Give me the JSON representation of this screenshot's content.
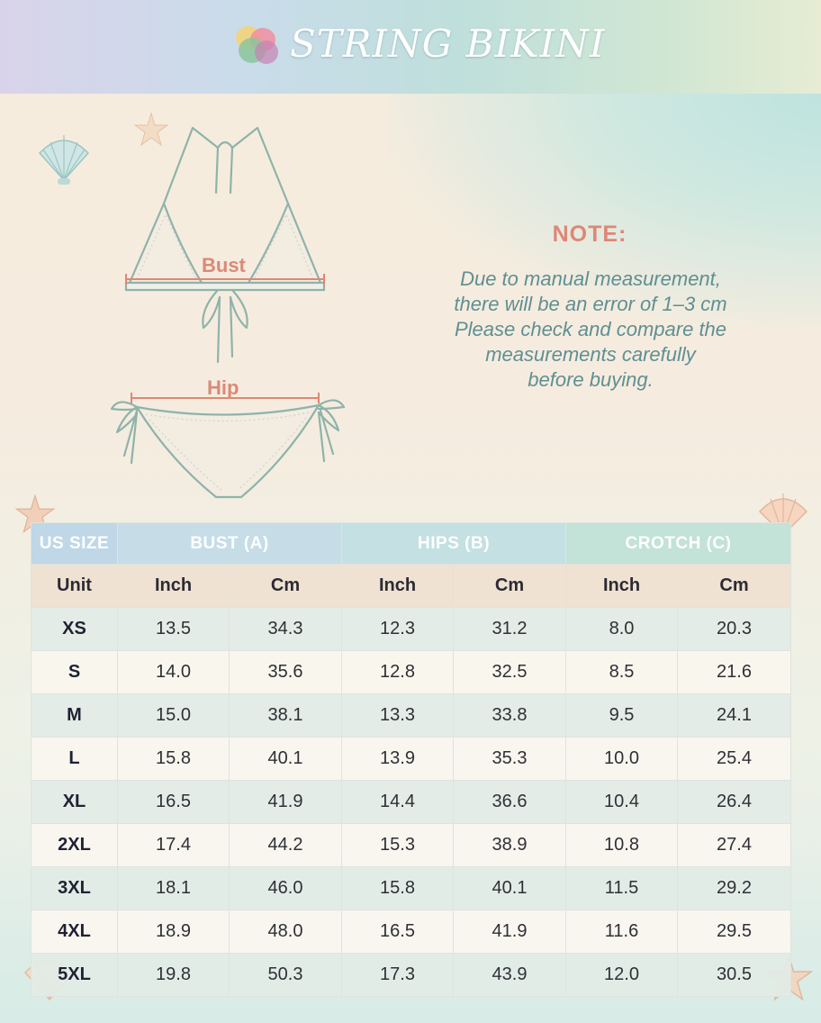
{
  "header": {
    "title": "STRING BIKINI"
  },
  "diagram": {
    "bust_label": "Bust",
    "hip_label": "Hip"
  },
  "note": {
    "title": "NOTE:",
    "lines": [
      "Due to manual measurement,",
      "there will be an error of  1–3 cm",
      "Please check and compare the",
      "measurements carefully",
      "before buying."
    ]
  },
  "colors": {
    "accent": "#de8776",
    "note_text": "#5f8f92",
    "header_cell_text": "#ffffff",
    "unit_row_bg": "#efe2d2"
  },
  "table": {
    "headers": [
      "US SIZE",
      "BUST (A)",
      "HIPS (B)",
      "CROTCH (C)"
    ],
    "units": [
      "Unit",
      "Inch",
      "Cm",
      "Inch",
      "Cm",
      "Inch",
      "Cm"
    ],
    "rows": [
      [
        "XS",
        "13.5",
        "34.3",
        "12.3",
        "31.2",
        "8.0",
        "20.3"
      ],
      [
        "S",
        "14.0",
        "35.6",
        "12.8",
        "32.5",
        "8.5",
        "21.6"
      ],
      [
        "M",
        "15.0",
        "38.1",
        "13.3",
        "33.8",
        "9.5",
        "24.1"
      ],
      [
        "L",
        "15.8",
        "40.1",
        "13.9",
        "35.3",
        "10.0",
        "25.4"
      ],
      [
        "XL",
        "16.5",
        "41.9",
        "14.4",
        "36.6",
        "10.4",
        "26.4"
      ],
      [
        "2XL",
        "17.4",
        "44.2",
        "15.3",
        "38.9",
        "10.8",
        "27.4"
      ],
      [
        "3XL",
        "18.1",
        "46.0",
        "15.8",
        "40.1",
        "11.5",
        "29.2"
      ],
      [
        "4XL",
        "18.9",
        "48.0",
        "16.5",
        "41.9",
        "11.6",
        "29.5"
      ],
      [
        "5XL",
        "19.8",
        "50.3",
        "17.3",
        "43.9",
        "12.0",
        "30.5"
      ]
    ]
  }
}
